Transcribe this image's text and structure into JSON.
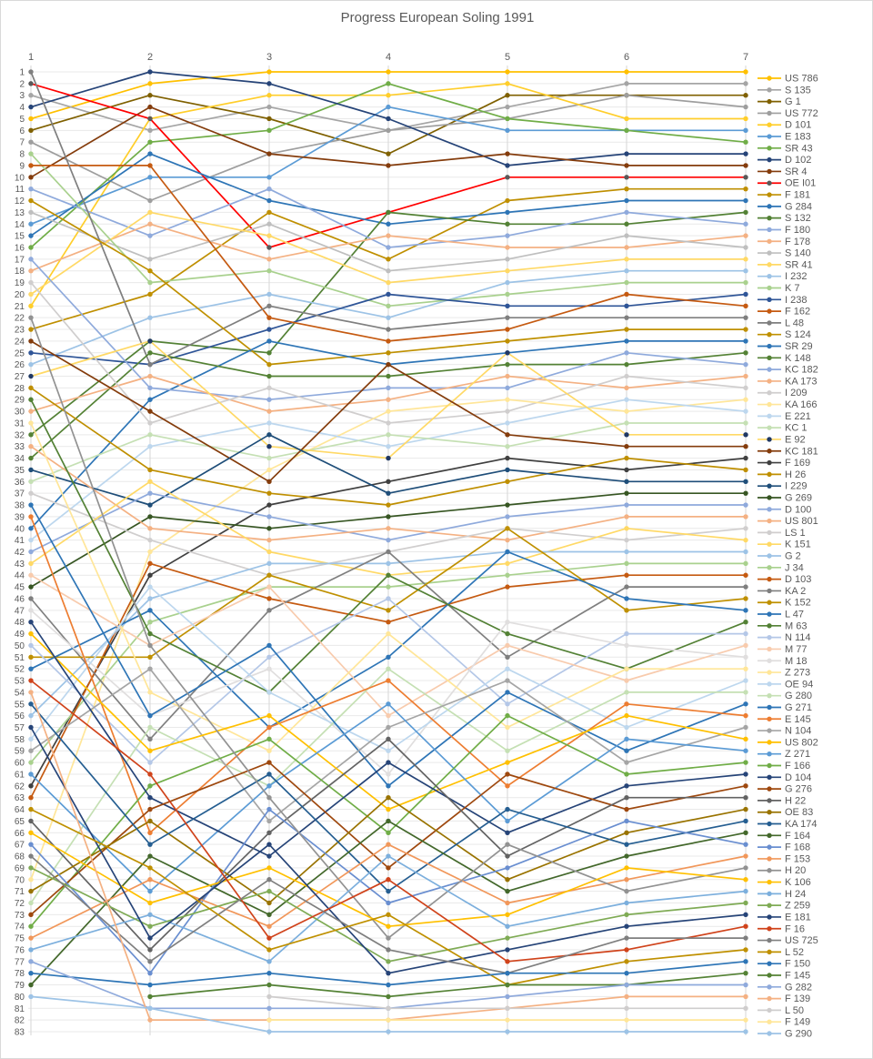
{
  "chart_data": {
    "type": "line",
    "subtype": "bump-rank-progression",
    "title": "Progress European Soling 1991",
    "x_ticks": [
      1,
      2,
      3,
      4,
      5,
      6,
      7
    ],
    "y_range": [
      1,
      83
    ],
    "y_inverted": true,
    "grid": true,
    "legend_position": "right",
    "text_color": "#595959",
    "gridline_color_h": "#e9e9e9",
    "gridline_color_v": "#d6d6d6",
    "series": [
      {
        "name": "US 786",
        "color": "#FFC000",
        "values": [
          5,
          2,
          1,
          1,
          1,
          1,
          1
        ]
      },
      {
        "name": "S 135",
        "color": "#A5A5A5",
        "values": [
          3,
          6,
          4,
          6,
          4,
          2,
          2
        ]
      },
      {
        "name": "G 1",
        "color": "#7F6000",
        "values": [
          6,
          3,
          5,
          8,
          3,
          3,
          3
        ]
      },
      {
        "name": "US 772",
        "color": "#9E9E9E",
        "values": [
          7,
          12,
          8,
          6,
          5,
          3,
          4
        ]
      },
      {
        "name": "D 101",
        "color": "#FFCE2B",
        "values": [
          21,
          5,
          3,
          3,
          2,
          5,
          5
        ]
      },
      {
        "name": "E 183",
        "color": "#5B9BD5",
        "values": [
          14,
          10,
          10,
          4,
          6,
          6,
          6
        ]
      },
      {
        "name": "SR 43",
        "color": "#70AD47",
        "values": [
          16,
          7,
          6,
          2,
          5,
          6,
          7
        ]
      },
      {
        "name": "D 102",
        "color": "#264478",
        "values": [
          4,
          1,
          2,
          5,
          9,
          8,
          8
        ]
      },
      {
        "name": "SR 4",
        "color": "#843C0C",
        "values": [
          10,
          4,
          8,
          9,
          8,
          9,
          9
        ]
      },
      {
        "name": "OE I01",
        "color": "#FF0000",
        "marker_color": "#595959",
        "values": [
          2,
          5,
          16,
          13,
          10,
          10,
          10
        ]
      },
      {
        "name": "F 181",
        "color": "#BF8F00",
        "values": [
          23,
          20,
          13,
          17,
          12,
          11,
          11
        ]
      },
      {
        "name": "G 284",
        "color": "#2E75B6",
        "values": [
          15,
          8,
          12,
          14,
          13,
          12,
          12
        ]
      },
      {
        "name": "S 132",
        "color": "#538135",
        "values": [
          32,
          24,
          25,
          13,
          14,
          14,
          13
        ]
      },
      {
        "name": "F 180",
        "color": "#8FAADC",
        "values": [
          11,
          15,
          11,
          16,
          15,
          13,
          14
        ]
      },
      {
        "name": "F 178",
        "color": "#F4B183",
        "values": [
          18,
          14,
          17,
          15,
          16,
          16,
          15
        ]
      },
      {
        "name": "S 140",
        "color": "#BFBFBF",
        "values": [
          13,
          17,
          14,
          18,
          17,
          15,
          16
        ]
      },
      {
        "name": "SR 41",
        "color": "#FFD966",
        "values": [
          20,
          13,
          15,
          19,
          18,
          17,
          17
        ]
      },
      {
        "name": "I 232",
        "color": "#9DC3E6",
        "values": [
          26,
          22,
          20,
          22,
          19,
          18,
          18
        ]
      },
      {
        "name": "K 7",
        "color": "#A9D18E",
        "values": [
          8,
          19,
          18,
          21,
          20,
          19,
          19
        ]
      },
      {
        "name": "I 238",
        "color": "#2F5597",
        "values": [
          25,
          26,
          23,
          20,
          21,
          21,
          20
        ]
      },
      {
        "name": "F 162",
        "color": "#C55A11",
        "values": [
          9,
          9,
          22,
          24,
          23,
          20,
          21
        ]
      },
      {
        "name": "L 48",
        "color": "#7F7F7F",
        "values": [
          1,
          26,
          21,
          23,
          22,
          22,
          22
        ]
      },
      {
        "name": "S 124",
        "color": "#BF9000",
        "values": [
          12,
          18,
          26,
          25,
          24,
          23,
          23
        ]
      },
      {
        "name": "SR 29",
        "color": "#2E75B6",
        "values": [
          40,
          29,
          24,
          26,
          25,
          24,
          24
        ]
      },
      {
        "name": "K 148",
        "color": "#548235",
        "values": [
          34,
          25,
          27,
          27,
          26,
          26,
          25
        ]
      },
      {
        "name": "KC 182",
        "color": "#8FAADC",
        "values": [
          17,
          28,
          29,
          28,
          28,
          25,
          26
        ]
      },
      {
        "name": "KA 173",
        "color": "#F4B183",
        "values": [
          30,
          27,
          30,
          29,
          27,
          28,
          27
        ]
      },
      {
        "name": "I 209",
        "color": "#D0CECE",
        "values": [
          19,
          31,
          28,
          31,
          30,
          27,
          28
        ]
      },
      {
        "name": "KA 166",
        "color": "#FFE699",
        "values": [
          70,
          42,
          35,
          30,
          29,
          30,
          29
        ]
      },
      {
        "name": "E 221",
        "color": "#BDD7EE",
        "values": [
          41,
          33,
          31,
          33,
          31,
          29,
          30
        ]
      },
      {
        "name": "KC 1",
        "color": "#C5E0B4",
        "values": [
          36,
          32,
          34,
          32,
          33,
          31,
          31
        ]
      },
      {
        "name": "E 92",
        "color": "#FFD966",
        "marker_color": "#203864",
        "values": [
          27,
          24,
          33,
          34,
          25,
          32,
          32
        ]
      },
      {
        "name": "KC 181",
        "color": "#843C0C",
        "values": [
          24,
          30,
          36,
          26,
          32,
          33,
          33
        ]
      },
      {
        "name": "F 169",
        "color": "#404040",
        "values": [
          62,
          44,
          38,
          36,
          34,
          35,
          34
        ]
      },
      {
        "name": "H 26",
        "color": "#BF8F00",
        "values": [
          28,
          35,
          37,
          38,
          36,
          34,
          35
        ]
      },
      {
        "name": "I 229",
        "color": "#1F4E79",
        "values": [
          35,
          38,
          32,
          37,
          35,
          36,
          36
        ]
      },
      {
        "name": "G 269",
        "color": "#375623",
        "values": [
          45,
          39,
          40,
          39,
          38,
          37,
          37
        ]
      },
      {
        "name": "D 100",
        "color": "#8FAADC",
        "values": [
          42,
          37,
          39,
          41,
          39,
          38,
          38
        ]
      },
      {
        "name": "US 801",
        "color": "#F4B183",
        "values": [
          33,
          40,
          41,
          40,
          41,
          39,
          39
        ]
      },
      {
        "name": "LS 1",
        "color": "#D0CECE",
        "values": [
          37,
          41,
          44,
          42,
          40,
          41,
          40
        ]
      },
      {
        "name": "K 151",
        "color": "#FFD966",
        "values": [
          43,
          36,
          42,
          44,
          43,
          40,
          41
        ]
      },
      {
        "name": "G 2",
        "color": "#9DC3E6",
        "values": [
          56,
          46,
          43,
          43,
          42,
          42,
          42
        ]
      },
      {
        "name": "J 34",
        "color": "#A9D18E",
        "values": [
          60,
          48,
          45,
          45,
          44,
          43,
          43
        ]
      },
      {
        "name": "D 103",
        "color": "#C55A11",
        "values": [
          63,
          43,
          46,
          48,
          45,
          44,
          44
        ]
      },
      {
        "name": "KA 2",
        "color": "#7F7F7F",
        "values": [
          46,
          58,
          47,
          42,
          51,
          45,
          45
        ]
      },
      {
        "name": "K 152",
        "color": "#BF9000",
        "values": [
          51,
          51,
          44,
          47,
          40,
          47,
          46
        ]
      },
      {
        "name": "L 47",
        "color": "#2E75B6",
        "values": [
          52,
          47,
          57,
          51,
          42,
          46,
          47
        ]
      },
      {
        "name": "M 63",
        "color": "#538135",
        "values": [
          29,
          49,
          54,
          44,
          49,
          52,
          48
        ]
      },
      {
        "name": "N 114",
        "color": "#B4C7E7",
        "values": [
          50,
          60,
          51,
          46,
          55,
          49,
          49
        ]
      },
      {
        "name": "M 77",
        "color": "#F8CBAD",
        "values": [
          44,
          50,
          45,
          56,
          50,
          53,
          50
        ]
      },
      {
        "name": "M 18",
        "color": "#E0DEDE",
        "values": [
          47,
          56,
          52,
          61,
          48,
          50,
          51
        ]
      },
      {
        "name": "Z 273",
        "color": "#FFE699",
        "values": [
          31,
          54,
          59,
          49,
          57,
          52,
          52
        ]
      },
      {
        "name": "OE 94",
        "color": "#BDD7EE",
        "values": [
          58,
          45,
          54,
          59,
          52,
          57,
          53
        ]
      },
      {
        "name": "G 280",
        "color": "#C5E0B4",
        "values": [
          72,
          57,
          62,
          52,
          59,
          54,
          54
        ]
      },
      {
        "name": "G 271",
        "color": "#2E75B6",
        "values": [
          38,
          56,
          50,
          62,
          54,
          59,
          55
        ]
      },
      {
        "name": "E 145",
        "color": "#ED7D31",
        "values": [
          39,
          66,
          57,
          53,
          62,
          55,
          56
        ]
      },
      {
        "name": "N 104",
        "color": "#A5A5A5",
        "values": [
          59,
          52,
          65,
          57,
          53,
          60,
          57
        ]
      },
      {
        "name": "US 802",
        "color": "#FFC000",
        "values": [
          49,
          59,
          56,
          64,
          60,
          56,
          58
        ]
      },
      {
        "name": "Z 271",
        "color": "#5B9BD5",
        "values": [
          61,
          71,
          62,
          55,
          65,
          58,
          59
        ]
      },
      {
        "name": "F 166",
        "color": "#70AD47",
        "values": [
          74,
          62,
          58,
          66,
          56,
          61,
          60
        ]
      },
      {
        "name": "D 104",
        "color": "#264478",
        "values": [
          48,
          63,
          68,
          60,
          66,
          62,
          61
        ]
      },
      {
        "name": "G 276",
        "color": "#9E480E",
        "values": [
          73,
          64,
          60,
          69,
          61,
          64,
          62
        ]
      },
      {
        "name": "H 22",
        "color": "#636363",
        "values": [
          65,
          76,
          66,
          58,
          68,
          63,
          63
        ]
      },
      {
        "name": "OE 83",
        "color": "#997300",
        "values": [
          71,
          65,
          72,
          63,
          70,
          66,
          64
        ]
      },
      {
        "name": "KA 174",
        "color": "#255E91",
        "values": [
          55,
          67,
          61,
          71,
          64,
          67,
          65
        ]
      },
      {
        "name": "F 164",
        "color": "#43682B",
        "values": [
          79,
          68,
          73,
          65,
          71,
          68,
          66
        ]
      },
      {
        "name": "F 168",
        "color": "#698ED0",
        "values": [
          67,
          78,
          64,
          72,
          69,
          65,
          67
        ]
      },
      {
        "name": "F 153",
        "color": "#F1975A",
        "values": [
          75,
          70,
          74,
          67,
          72,
          70,
          68
        ]
      },
      {
        "name": "H 20",
        "color": "#929292",
        "values": [
          22,
          50,
          63,
          75,
          67,
          71,
          69
        ]
      },
      {
        "name": "K 106",
        "color": "#FFC000",
        "values": [
          66,
          72,
          69,
          74,
          73,
          69,
          70
        ]
      },
      {
        "name": "H 24",
        "color": "#7CAFDD",
        "values": [
          76,
          73,
          77,
          68,
          74,
          72,
          71
        ]
      },
      {
        "name": "Z 259",
        "color": "#7FAB55",
        "values": [
          69,
          74,
          71,
          77,
          75,
          73,
          72
        ]
      },
      {
        "name": "E 181",
        "color": "#264478",
        "values": [
          57,
          75,
          67,
          78,
          76,
          74,
          73
        ]
      },
      {
        "name": "F 16",
        "color": "#D0431B",
        "values": [
          53,
          61,
          75,
          70,
          77,
          76,
          74
        ]
      },
      {
        "name": "US 725",
        "color": "#7F7F7F",
        "values": [
          68,
          77,
          70,
          76,
          78,
          75,
          75
        ]
      },
      {
        "name": "L 52",
        "color": "#BF9000",
        "values": [
          64,
          69,
          76,
          73,
          79,
          77,
          76
        ]
      },
      {
        "name": "F 150",
        "color": "#2E75B6",
        "values": [
          78,
          79,
          78,
          79,
          78,
          78,
          77
        ]
      },
      {
        "name": "F 145",
        "color": "#548235",
        "values": [
          null,
          80,
          79,
          80,
          79,
          79,
          78
        ]
      },
      {
        "name": "G 282",
        "color": "#8FAADC",
        "values": [
          77,
          81,
          81,
          81,
          80,
          79,
          79
        ]
      },
      {
        "name": "F 139",
        "color": "#F4B183",
        "values": [
          54,
          82,
          82,
          82,
          81,
          80,
          80
        ]
      },
      {
        "name": "L 50",
        "color": "#CFCDCD",
        "values": [
          null,
          null,
          80,
          81,
          81,
          81,
          81
        ]
      },
      {
        "name": "F 149",
        "color": "#FFE699",
        "values": [
          null,
          null,
          82,
          82,
          82,
          82,
          82
        ]
      },
      {
        "name": "G 290",
        "color": "#9DC3E6",
        "values": [
          80,
          81,
          83,
          83,
          83,
          83,
          83
        ]
      }
    ]
  }
}
